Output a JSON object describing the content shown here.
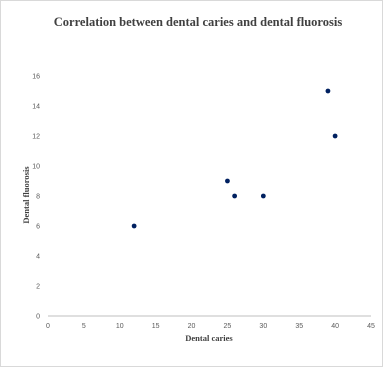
{
  "chart_data": {
    "type": "scatter",
    "title": "Correlation between dental caries and dental fluorosis",
    "xlabel": "Dental caries",
    "ylabel": "Dental fluorosis",
    "xlim": [
      0,
      45
    ],
    "ylim": [
      0,
      16
    ],
    "xticks": [
      "0",
      "5",
      "10",
      "15",
      "20",
      "25",
      "30",
      "35",
      "40",
      "45"
    ],
    "yticks": [
      "0",
      "2",
      "4",
      "6",
      "8",
      "10",
      "12",
      "14",
      "16"
    ],
    "grid": false,
    "legend": "none",
    "marker_color": "#002060",
    "points": [
      {
        "x": 12,
        "y": 6
      },
      {
        "x": 25,
        "y": 9
      },
      {
        "x": 26,
        "y": 8
      },
      {
        "x": 30,
        "y": 8
      },
      {
        "x": 39,
        "y": 15
      },
      {
        "x": 40,
        "y": 12
      }
    ]
  }
}
